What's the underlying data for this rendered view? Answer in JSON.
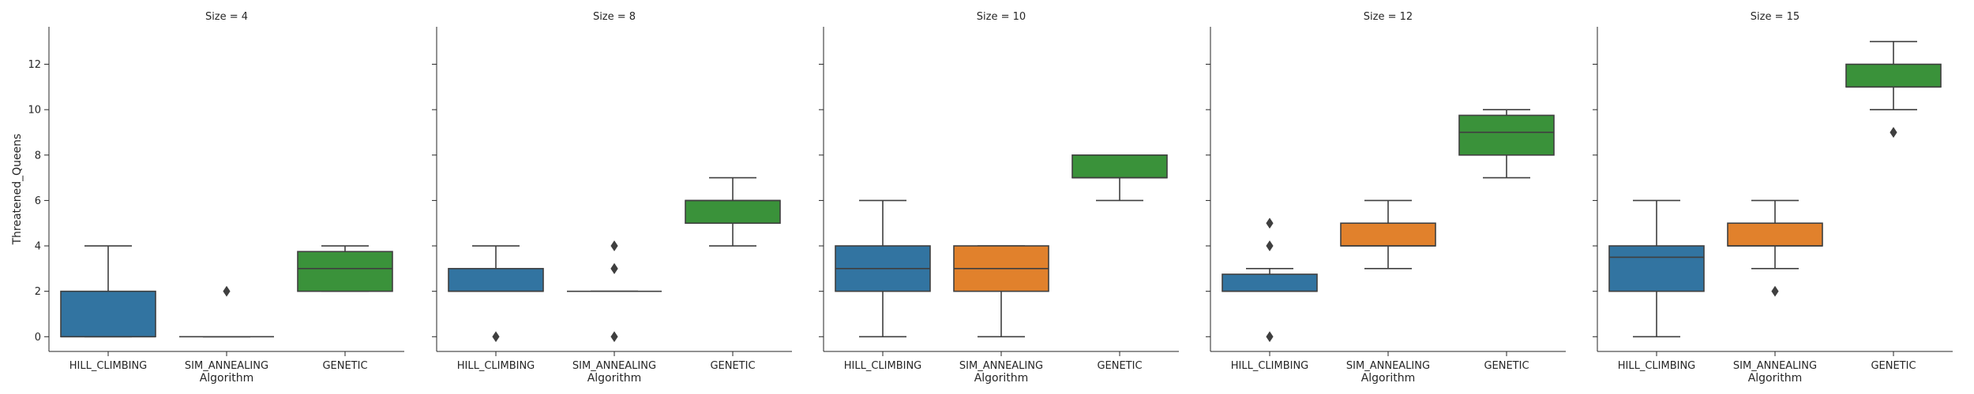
{
  "chart_data": {
    "type": "box",
    "ylabel": "Threatened_Queens",
    "xlabel": "Algorithm",
    "categories": [
      "HILL_CLIMBING",
      "SIM_ANNEALING",
      "GENETIC"
    ],
    "ylim": [
      -0.65,
      13.65
    ],
    "yticks": [
      0,
      2,
      4,
      6,
      8,
      10,
      12
    ],
    "grid": false,
    "colors": {
      "HILL_CLIMBING": "#3274a1",
      "SIM_ANNEALING": "#e1812c",
      "GENETIC": "#3a923a"
    },
    "panels": [
      {
        "title": "Size = 4",
        "boxes": [
          {
            "category": "HILL_CLIMBING",
            "q1": 0,
            "median": 0,
            "q3": 2,
            "whisker_low": 0,
            "whisker_high": 4,
            "outliers": []
          },
          {
            "category": "SIM_ANNEALING",
            "q1": 0,
            "median": 0,
            "q3": 0,
            "whisker_low": 0,
            "whisker_high": 0,
            "outliers": [
              2
            ]
          },
          {
            "category": "GENETIC",
            "q1": 2,
            "median": 3,
            "q3": 3.75,
            "whisker_low": 2,
            "whisker_high": 4,
            "outliers": []
          }
        ]
      },
      {
        "title": "Size = 8",
        "boxes": [
          {
            "category": "HILL_CLIMBING",
            "q1": 2,
            "median": 2,
            "q3": 3,
            "whisker_low": 2,
            "whisker_high": 4,
            "outliers": [
              0
            ]
          },
          {
            "category": "SIM_ANNEALING",
            "q1": 2,
            "median": 2,
            "q3": 2,
            "whisker_low": 2,
            "whisker_high": 2,
            "outliers": [
              0,
              3,
              3,
              4
            ]
          },
          {
            "category": "GENETIC",
            "q1": 5,
            "median": 6,
            "q3": 6,
            "whisker_low": 4,
            "whisker_high": 7,
            "outliers": []
          }
        ]
      },
      {
        "title": "Size = 10",
        "boxes": [
          {
            "category": "HILL_CLIMBING",
            "q1": 2,
            "median": 3,
            "q3": 4,
            "whisker_low": 0,
            "whisker_high": 6,
            "outliers": []
          },
          {
            "category": "SIM_ANNEALING",
            "q1": 2,
            "median": 3,
            "q3": 4,
            "whisker_low": 0,
            "whisker_high": 4,
            "outliers": []
          },
          {
            "category": "GENETIC",
            "q1": 7,
            "median": 7,
            "q3": 8,
            "whisker_low": 6,
            "whisker_high": 8,
            "outliers": []
          }
        ]
      },
      {
        "title": "Size = 12",
        "boxes": [
          {
            "category": "HILL_CLIMBING",
            "q1": 2,
            "median": 2,
            "q3": 2.75,
            "whisker_low": 2,
            "whisker_high": 3,
            "outliers": [
              0,
              4,
              5
            ]
          },
          {
            "category": "SIM_ANNEALING",
            "q1": 4,
            "median": 4,
            "q3": 5,
            "whisker_low": 3,
            "whisker_high": 6,
            "outliers": []
          },
          {
            "category": "GENETIC",
            "q1": 8,
            "median": 9,
            "q3": 9.75,
            "whisker_low": 7,
            "whisker_high": 10,
            "outliers": []
          }
        ]
      },
      {
        "title": "Size = 15",
        "boxes": [
          {
            "category": "HILL_CLIMBING",
            "q1": 2,
            "median": 3.5,
            "q3": 4,
            "whisker_low": 0,
            "whisker_high": 6,
            "outliers": []
          },
          {
            "category": "SIM_ANNEALING",
            "q1": 4,
            "median": 4,
            "q3": 5,
            "whisker_low": 3,
            "whisker_high": 6,
            "outliers": [
              2
            ]
          },
          {
            "category": "GENETIC",
            "q1": 11,
            "median": 11,
            "q3": 12,
            "whisker_low": 10,
            "whisker_high": 13,
            "outliers": [
              9
            ]
          }
        ]
      }
    ]
  }
}
